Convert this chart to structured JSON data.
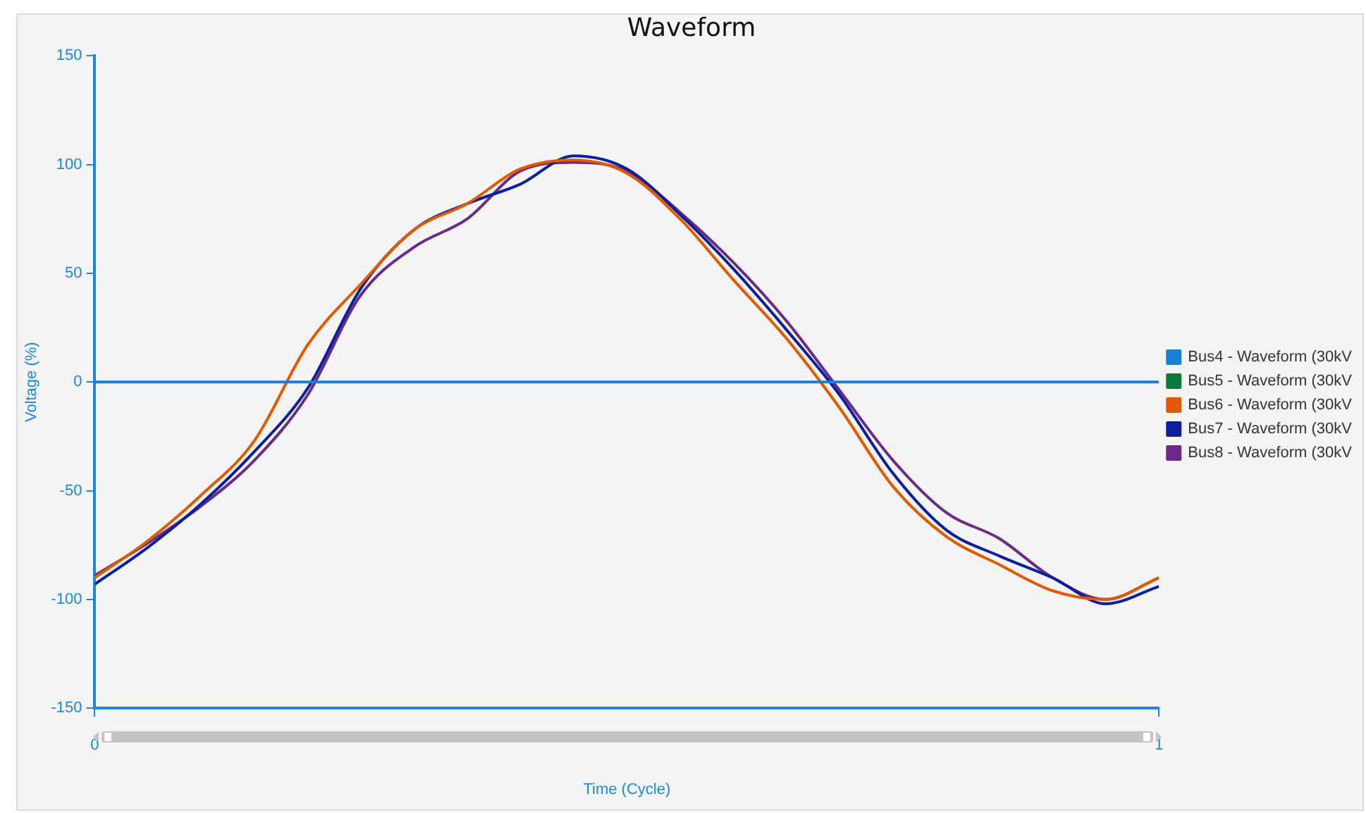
{
  "chart_data": {
    "type": "line",
    "title": "Waveform",
    "xlabel": "Time (Cycle)",
    "ylabel": "Voltage (%)",
    "x": [
      0,
      0.05,
      0.1,
      0.15,
      0.2,
      0.25,
      0.3,
      0.35,
      0.4,
      0.45,
      0.5,
      0.55,
      0.6,
      0.65,
      0.7,
      0.75,
      0.8,
      0.85,
      0.9,
      0.95,
      1
    ],
    "xlim": [
      0,
      1
    ],
    "xticks": [
      0,
      1
    ],
    "ylim": [
      -150,
      150
    ],
    "yticks": [
      -150,
      -100,
      -50,
      0,
      50,
      100,
      150
    ],
    "grid": false,
    "legend": "right",
    "marker": "none",
    "line_style": "solid",
    "series": [
      {
        "name": "Bus4 - Waveform (30kV",
        "color": "#1a7fd4",
        "values": [
          0,
          0,
          0,
          0,
          0,
          0,
          0,
          0,
          0,
          0,
          0,
          0,
          0,
          0,
          0,
          0,
          0,
          0,
          0,
          0,
          0
        ]
      },
      {
        "name": "Bus5 - Waveform (30kV",
        "color": "#0b7a3b",
        "values": [
          null,
          null,
          null,
          null,
          null,
          null,
          null,
          null,
          null,
          null,
          null,
          null,
          null,
          null,
          null,
          null,
          null,
          null,
          null,
          null,
          null
        ]
      },
      {
        "name": "Bus6 - Waveform (30kV",
        "color": "#e05a00",
        "values": [
          -90,
          -73,
          -52,
          -27,
          17,
          45,
          70,
          82,
          98,
          102,
          96,
          75,
          47,
          20,
          -12,
          -48,
          -71,
          -84,
          -96,
          -100,
          -90
        ]
      },
      {
        "name": "Bus7 - Waveform (30kV",
        "color": "#0c1f9c",
        "values": [
          -93,
          -76,
          -56,
          -32,
          -3,
          43,
          70,
          82,
          91,
          104,
          98,
          77,
          52,
          24,
          -6,
          -42,
          -68,
          -80,
          -90,
          -102,
          -94
        ]
      },
      {
        "name": "Bus8 - Waveform (30kV",
        "color": "#6a2a86",
        "values": [
          -89,
          -74,
          -57,
          -36,
          -6,
          40,
          62,
          75,
          97,
          101,
          97,
          78,
          55,
          28,
          -4,
          -36,
          -60,
          -72,
          -90,
          -100,
          -90
        ]
      }
    ]
  }
}
